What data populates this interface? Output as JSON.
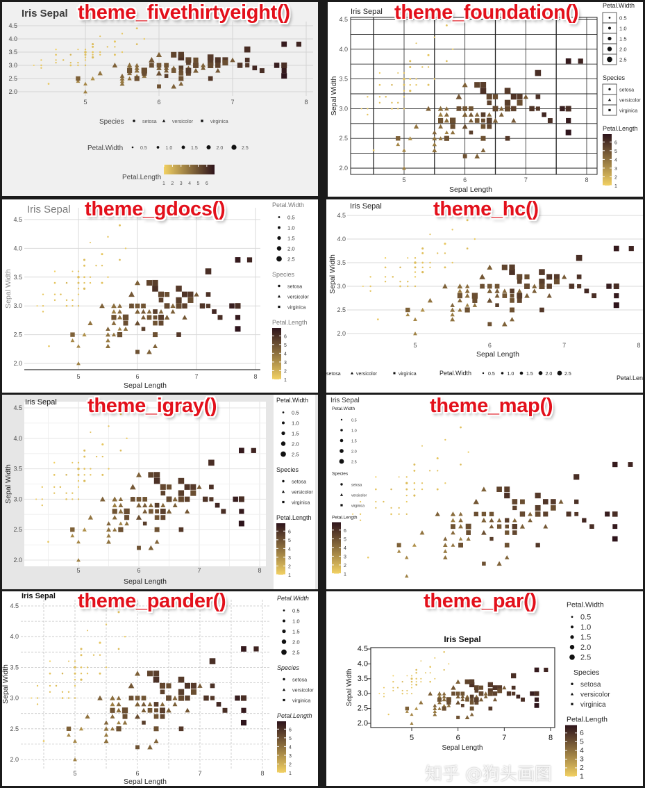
{
  "watermark": "知乎 @狗头画图",
  "colors": {
    "petal_length_low": "#f2d163",
    "petal_length_high": "#2e141b",
    "label_red": "#e3101b"
  },
  "chart_data": {
    "type": "scatter",
    "x_variable": "Sepal.Length",
    "y_variable": "Sepal.Width",
    "color_variable": "Petal.Length",
    "size_variable": "Petal.Width",
    "shape_variable": "Species",
    "xlim": [
      4.3,
      7.9
    ],
    "ylim": [
      2.0,
      4.4
    ],
    "x_ticks": [
      "5",
      "6",
      "7",
      "8"
    ],
    "y_ticks": [
      "2.0",
      "2.5",
      "3.0",
      "3.5",
      "4.0",
      "4.5"
    ],
    "legend": {
      "size_title": "Petal.Width",
      "size_values": [
        "0.5",
        "1.0",
        "1.5",
        "2.0",
        "2.5"
      ],
      "species_title": "Species",
      "species": [
        "setosa",
        "versicolor",
        "virginica"
      ],
      "species_shapes": [
        "circle",
        "triangle",
        "square"
      ],
      "color_title": "Petal.Length",
      "color_ticks": [
        "1",
        "2",
        "3",
        "4",
        "5",
        "6"
      ]
    },
    "series": [
      {
        "name": "setosa",
        "sepal_length": [
          5.1,
          4.9,
          4.7,
          4.6,
          5.0,
          5.4,
          4.6,
          5.0,
          4.4,
          4.9,
          5.4,
          4.8,
          4.8,
          4.3,
          5.8,
          5.7,
          5.4,
          5.1,
          5.7,
          5.1,
          5.4,
          5.1,
          4.6,
          5.1,
          4.8,
          5.0,
          5.0,
          5.2,
          5.2,
          4.7,
          4.8,
          5.4,
          5.2,
          5.5,
          4.9,
          5.0,
          5.5,
          4.9,
          4.4,
          5.1,
          5.0,
          4.5,
          4.4,
          5.0,
          5.1,
          4.8,
          5.1,
          4.6,
          5.3,
          5.0
        ],
        "sepal_width": [
          3.5,
          3.0,
          3.2,
          3.1,
          3.6,
          3.9,
          3.4,
          3.4,
          2.9,
          3.1,
          3.7,
          3.4,
          3.0,
          3.0,
          4.0,
          4.4,
          3.9,
          3.5,
          3.8,
          3.8,
          3.4,
          3.7,
          3.6,
          3.3,
          3.4,
          3.0,
          3.4,
          3.5,
          3.4,
          3.2,
          3.1,
          3.4,
          4.1,
          4.2,
          3.1,
          3.2,
          3.5,
          3.6,
          3.0,
          3.4,
          3.5,
          2.3,
          3.2,
          3.5,
          3.8,
          3.0,
          3.8,
          3.2,
          3.7,
          3.3
        ],
        "petal_length": [
          1.4,
          1.4,
          1.3,
          1.5,
          1.4,
          1.7,
          1.4,
          1.5,
          1.4,
          1.5,
          1.5,
          1.6,
          1.4,
          1.1,
          1.2,
          1.5,
          1.3,
          1.4,
          1.7,
          1.5,
          1.7,
          1.5,
          1.0,
          1.7,
          1.9,
          1.6,
          1.6,
          1.5,
          1.4,
          1.6,
          1.6,
          1.5,
          1.5,
          1.4,
          1.5,
          1.2,
          1.3,
          1.4,
          1.3,
          1.5,
          1.3,
          1.3,
          1.3,
          1.6,
          1.9,
          1.4,
          1.6,
          1.4,
          1.5,
          1.4
        ],
        "petal_width": [
          0.2,
          0.2,
          0.2,
          0.2,
          0.2,
          0.4,
          0.3,
          0.2,
          0.2,
          0.1,
          0.2,
          0.2,
          0.1,
          0.1,
          0.2,
          0.4,
          0.4,
          0.3,
          0.3,
          0.3,
          0.2,
          0.4,
          0.2,
          0.5,
          0.2,
          0.2,
          0.4,
          0.2,
          0.2,
          0.2,
          0.2,
          0.4,
          0.1,
          0.2,
          0.2,
          0.2,
          0.2,
          0.1,
          0.2,
          0.2,
          0.3,
          0.3,
          0.2,
          0.6,
          0.4,
          0.3,
          0.2,
          0.2,
          0.2,
          0.2
        ]
      },
      {
        "name": "versicolor",
        "sepal_length": [
          7.0,
          6.4,
          6.9,
          5.5,
          6.5,
          5.7,
          6.3,
          4.9,
          6.6,
          5.2,
          5.0,
          5.9,
          6.0,
          6.1,
          5.6,
          6.7,
          5.6,
          5.8,
          6.2,
          5.6,
          5.9,
          6.1,
          6.3,
          6.1,
          6.4,
          6.6,
          6.8,
          6.7,
          6.0,
          5.7,
          5.5,
          5.5,
          5.8,
          6.0,
          5.4,
          6.0,
          6.7,
          6.3,
          5.6,
          5.5,
          5.5,
          6.1,
          5.8,
          5.0,
          5.6,
          5.7,
          5.7,
          6.2,
          5.1,
          5.7
        ],
        "sepal_width": [
          3.2,
          3.2,
          3.1,
          2.3,
          2.8,
          2.8,
          3.3,
          2.4,
          2.9,
          2.7,
          2.0,
          3.0,
          2.2,
          2.9,
          2.9,
          3.1,
          3.0,
          2.7,
          2.2,
          2.5,
          3.2,
          2.8,
          2.5,
          2.8,
          2.9,
          3.0,
          2.8,
          3.0,
          2.9,
          2.6,
          2.4,
          2.4,
          2.7,
          2.7,
          3.0,
          3.4,
          3.1,
          2.3,
          3.0,
          2.5,
          2.6,
          3.0,
          2.6,
          2.3,
          2.7,
          3.0,
          2.9,
          2.9,
          2.5,
          2.8
        ],
        "petal_length": [
          4.7,
          4.5,
          4.9,
          4.0,
          4.6,
          4.5,
          4.7,
          3.3,
          4.6,
          3.9,
          3.5,
          4.2,
          4.0,
          4.7,
          3.6,
          4.4,
          4.5,
          4.1,
          4.5,
          3.9,
          4.8,
          4.0,
          4.9,
          4.7,
          4.3,
          4.4,
          4.8,
          5.0,
          4.5,
          3.5,
          3.8,
          3.7,
          3.9,
          5.1,
          4.5,
          4.5,
          4.7,
          4.4,
          4.1,
          4.0,
          4.4,
          4.6,
          4.0,
          3.3,
          4.2,
          4.2,
          4.2,
          4.3,
          3.0,
          4.1
        ],
        "petal_width": [
          1.4,
          1.5,
          1.5,
          1.3,
          1.5,
          1.3,
          1.6,
          1.0,
          1.3,
          1.4,
          1.0,
          1.5,
          1.0,
          1.4,
          1.3,
          1.4,
          1.5,
          1.0,
          1.5,
          1.1,
          1.8,
          1.3,
          1.5,
          1.2,
          1.3,
          1.4,
          1.4,
          1.7,
          1.5,
          1.0,
          1.1,
          1.0,
          1.2,
          1.6,
          1.5,
          1.6,
          1.5,
          1.3,
          1.3,
          1.3,
          1.2,
          1.4,
          1.2,
          1.0,
          1.3,
          1.2,
          1.3,
          1.3,
          1.1,
          1.3
        ]
      },
      {
        "name": "virginica",
        "sepal_length": [
          6.3,
          5.8,
          7.1,
          6.3,
          6.5,
          7.6,
          4.9,
          7.3,
          6.7,
          7.2,
          6.5,
          6.4,
          6.8,
          5.7,
          5.8,
          6.4,
          6.5,
          7.7,
          7.7,
          6.0,
          6.9,
          5.6,
          7.7,
          6.3,
          6.7,
          7.2,
          6.2,
          6.1,
          6.4,
          7.2,
          7.4,
          7.9,
          6.4,
          6.3,
          6.1,
          7.7,
          6.3,
          6.4,
          6.0,
          6.9,
          6.7,
          6.9,
          5.8,
          6.8,
          6.7,
          6.7,
          6.3,
          6.5,
          6.2,
          5.9
        ],
        "sepal_width": [
          3.3,
          2.7,
          3.0,
          2.9,
          3.0,
          3.0,
          2.5,
          2.9,
          2.5,
          3.6,
          3.2,
          2.7,
          3.0,
          2.5,
          2.8,
          3.2,
          3.0,
          3.8,
          2.6,
          2.2,
          3.2,
          2.8,
          2.8,
          2.7,
          3.3,
          3.2,
          2.8,
          3.0,
          2.8,
          3.0,
          2.8,
          3.8,
          2.8,
          2.8,
          2.6,
          3.0,
          3.4,
          3.1,
          3.0,
          3.1,
          3.1,
          3.1,
          2.7,
          3.2,
          3.3,
          3.0,
          2.5,
          3.0,
          3.4,
          3.0
        ],
        "petal_length": [
          6.0,
          5.1,
          5.9,
          5.6,
          5.8,
          6.6,
          4.5,
          6.3,
          5.8,
          6.1,
          5.1,
          5.3,
          5.5,
          5.0,
          5.1,
          5.3,
          5.5,
          6.7,
          6.9,
          5.0,
          5.7,
          4.9,
          6.7,
          4.9,
          5.7,
          6.0,
          4.8,
          4.9,
          5.6,
          5.8,
          6.1,
          6.4,
          5.6,
          5.1,
          5.6,
          6.1,
          5.6,
          5.5,
          4.8,
          5.4,
          5.6,
          5.1,
          5.1,
          5.9,
          5.7,
          5.2,
          5.0,
          5.2,
          5.4,
          5.1
        ],
        "petal_width": [
          2.5,
          1.9,
          2.1,
          1.8,
          2.2,
          2.1,
          1.7,
          1.8,
          1.8,
          2.5,
          2.0,
          1.9,
          2.1,
          2.0,
          2.4,
          2.3,
          1.8,
          2.2,
          2.3,
          1.5,
          2.3,
          2.0,
          2.0,
          1.8,
          2.1,
          1.8,
          1.8,
          1.8,
          2.1,
          1.6,
          1.9,
          2.0,
          2.2,
          1.5,
          1.4,
          2.3,
          2.4,
          1.8,
          1.8,
          2.1,
          2.4,
          2.3,
          1.9,
          2.3,
          2.5,
          2.3,
          1.9,
          2.0,
          2.3,
          1.8
        ]
      }
    ],
    "panels": [
      {
        "theme_label": "theme_fivethirtyeight()",
        "title": "Iris Sepal",
        "xlabel": "",
        "ylabel": "",
        "legend_position": "bottom",
        "grid": true
      },
      {
        "theme_label": "theme_foundation()",
        "title": "Iris Sepal",
        "xlabel": "Sepal Length",
        "ylabel": "Sepal Width",
        "legend_position": "right",
        "grid": true
      },
      {
        "theme_label": "theme_gdocs()",
        "title": "Iris Sepal",
        "xlabel": "Sepal Length",
        "ylabel": "Sepal Width",
        "legend_position": "right",
        "grid": true
      },
      {
        "theme_label": "theme_hc()",
        "title": "Iris Sepal",
        "xlabel": "Sepal Length",
        "ylabel": "Sepal Width",
        "legend_position": "bottom",
        "grid": true
      },
      {
        "theme_label": "theme_igray()",
        "title": "Iris Sepal",
        "xlabel": "Sepal Length",
        "ylabel": "Sepal Width",
        "legend_position": "right",
        "grid": true
      },
      {
        "theme_label": "theme_map()",
        "title": "Iris Sepal",
        "xlabel": "",
        "ylabel": "",
        "legend_position": "top-left",
        "grid": false
      },
      {
        "theme_label": "theme_pander()",
        "title": "Iris Sepal",
        "xlabel": "Sepal Length",
        "ylabel": "Sepal Width",
        "legend_position": "right",
        "grid": true
      },
      {
        "theme_label": "theme_par()",
        "title": "Iris Sepal",
        "xlabel": "Sepal Length",
        "ylabel": "Sepal Width",
        "legend_position": "right",
        "grid": false
      }
    ]
  }
}
